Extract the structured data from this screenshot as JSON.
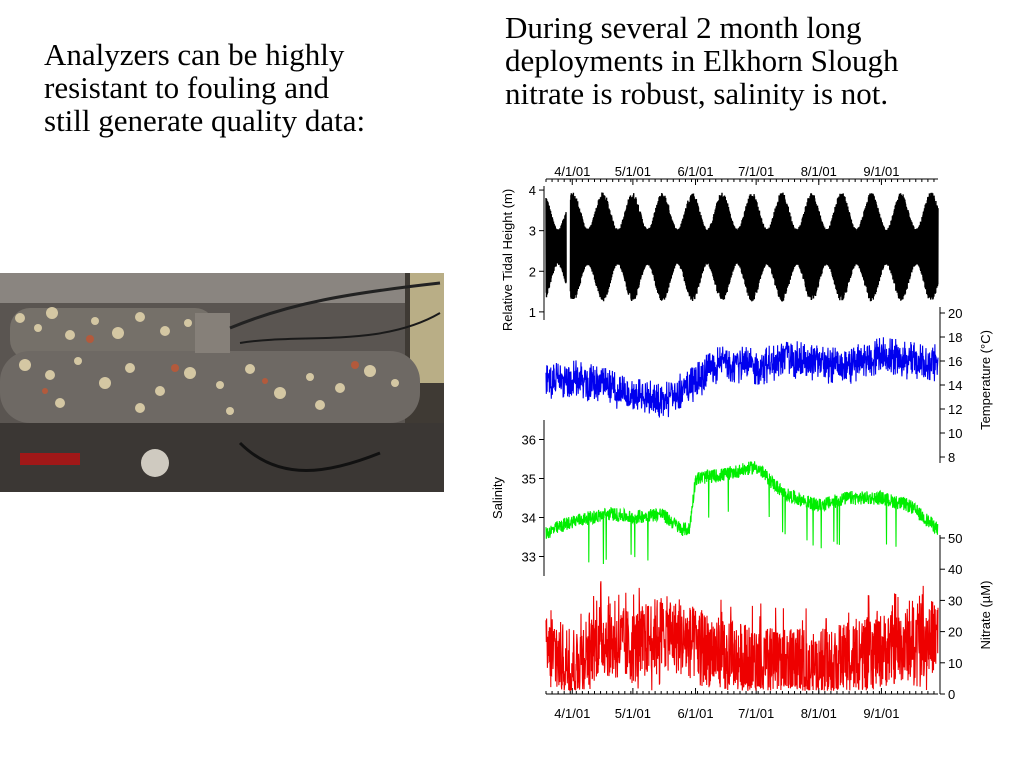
{
  "slide": {
    "left_text": "Analyzers can be highly resistant to fouling and still generate quality data:",
    "top_text": "During several 2 month long deployments in Elkhorn Slough nitrate is robust, salinity is not."
  },
  "photo": {
    "description": ""
  },
  "colors": {
    "tidal": "#000000",
    "temperature": "#0000ee",
    "salinity": "#00ee00",
    "nitrate": "#ee0000"
  },
  "chart_data": {
    "type": "line",
    "x_tick_labels": [
      "4/1/01",
      "5/1/01",
      "6/1/01",
      "7/1/01",
      "8/1/01",
      "9/1/01"
    ],
    "xlim": [
      "2001-03-19",
      "2001-09-29"
    ],
    "series": [
      {
        "name": "Relative Tidal Height (m)",
        "ylabel": "Relative Tidal Height (m)",
        "axis": "left",
        "ylim": [
          0.8,
          4.1
        ],
        "ticks": [
          1,
          2,
          3,
          4
        ],
        "gap": [
          "2001-03-29",
          "2001-03-31"
        ],
        "center": 2.6,
        "amplitude_min": 0.45,
        "amplitude_max": 1.35
      },
      {
        "name": "Temperature (°C)",
        "ylabel": "Temperature (°C)",
        "axis": "right",
        "ylim": [
          7.5,
          20.5
        ],
        "ticks": [
          8,
          10,
          12,
          14,
          16,
          18,
          20
        ],
        "x": [
          "2001-03-19",
          "2001-04-01",
          "2001-04-20",
          "2001-05-01",
          "2001-05-15",
          "2001-06-01",
          "2001-06-15",
          "2001-07-01",
          "2001-07-15",
          "2001-08-01",
          "2001-08-15",
          "2001-09-01",
          "2001-09-15",
          "2001-09-29"
        ],
        "y": [
          14.2,
          14.6,
          13.7,
          13.4,
          12.5,
          14.3,
          16.0,
          15.4,
          16.2,
          15.8,
          15.5,
          16.5,
          16.0,
          15.8
        ]
      },
      {
        "name": "Salinity",
        "ylabel": "Salinity",
        "axis": "left",
        "ylim": [
          32.5,
          36.5
        ],
        "ticks": [
          33,
          34,
          35,
          36
        ],
        "x": [
          "2001-03-19",
          "2001-04-01",
          "2001-04-20",
          "2001-05-01",
          "2001-05-15",
          "2001-05-25",
          "2001-05-29",
          "2001-06-01",
          "2001-06-15",
          "2001-07-01",
          "2001-07-15",
          "2001-08-01",
          "2001-08-15",
          "2001-09-01",
          "2001-09-15",
          "2001-09-29"
        ],
        "y": [
          33.6,
          33.9,
          34.1,
          34.0,
          34.1,
          33.7,
          33.7,
          35.0,
          35.1,
          35.3,
          34.6,
          34.3,
          34.5,
          34.5,
          34.3,
          33.7
        ]
      },
      {
        "name": "Nitrate (µM)",
        "ylabel": "Nitrate (µM)",
        "axis": "right",
        "ylim": [
          0,
          55
        ],
        "ticks": [
          0,
          10,
          20,
          30,
          40,
          50
        ],
        "x": [
          "2001-03-19",
          "2001-04-01",
          "2001-04-15",
          "2001-05-01",
          "2001-05-15",
          "2001-06-01",
          "2001-06-15",
          "2001-07-01",
          "2001-07-15",
          "2001-08-01",
          "2001-08-15",
          "2001-09-01",
          "2001-09-15",
          "2001-09-29"
        ],
        "y": [
          13,
          10,
          18,
          15,
          20,
          16,
          12,
          10,
          9,
          9,
          11,
          14,
          16,
          19
        ]
      }
    ]
  }
}
